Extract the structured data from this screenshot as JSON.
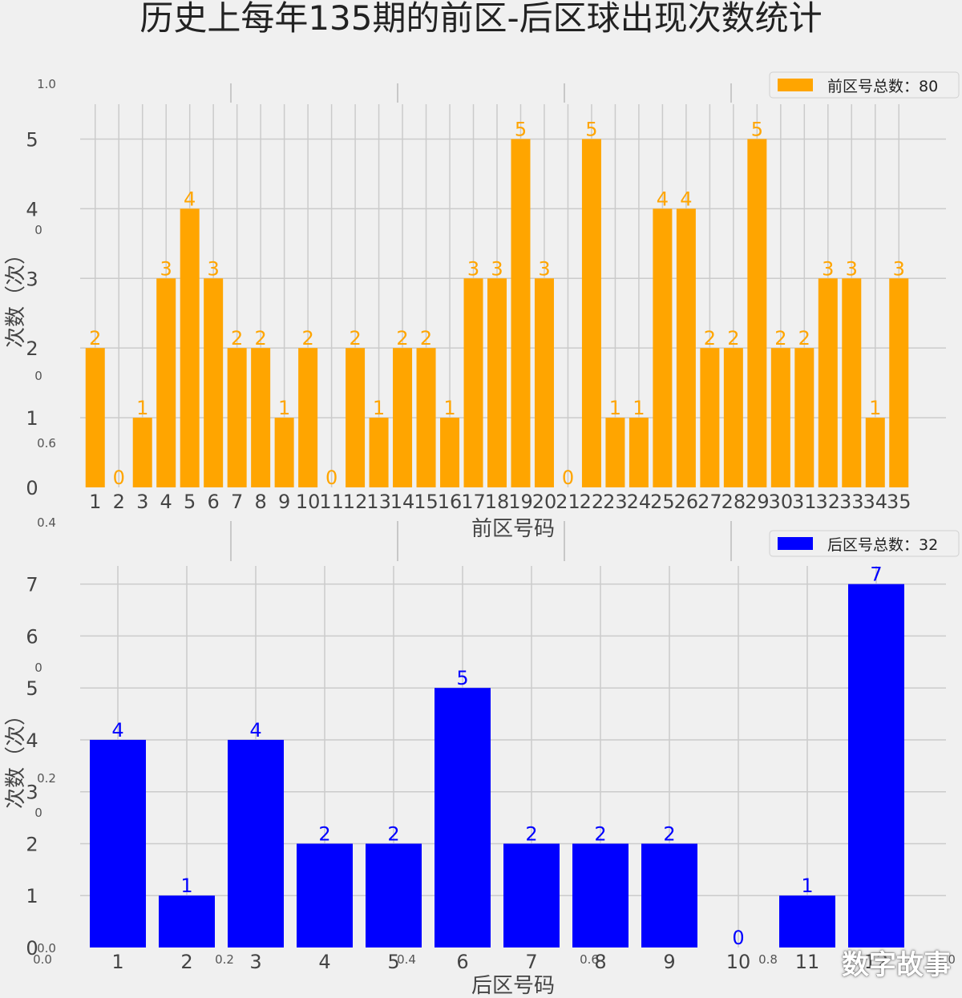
{
  "title": "历史上每年135期的前区-后区球出现次数统计",
  "watermark": "数字故事",
  "chart_data": [
    {
      "type": "bar",
      "color": "#ffa500",
      "categories": [
        "1",
        "2",
        "3",
        "4",
        "5",
        "6",
        "7",
        "8",
        "9",
        "10",
        "11",
        "12",
        "13",
        "14",
        "15",
        "16",
        "17",
        "18",
        "19",
        "20",
        "21",
        "22",
        "23",
        "24",
        "25",
        "26",
        "27",
        "28",
        "29",
        "30",
        "31",
        "32",
        "33",
        "34",
        "35"
      ],
      "series": [
        {
          "name": "前区号总数：80",
          "values": [
            2,
            0,
            1,
            3,
            4,
            3,
            2,
            2,
            1,
            2,
            0,
            2,
            1,
            2,
            2,
            1,
            3,
            3,
            5,
            3,
            0,
            5,
            1,
            1,
            4,
            4,
            2,
            2,
            5,
            2,
            2,
            3,
            3,
            1,
            3
          ]
        }
      ],
      "xlabel": "前区号码",
      "ylabel": "次数（次）",
      "yticks": [
        "0",
        "1",
        "2",
        "3",
        "4",
        "5"
      ],
      "ylim": [
        0,
        5.5
      ],
      "grid": true,
      "legend": "top-right"
    },
    {
      "type": "bar",
      "color": "#0000ff",
      "categories": [
        "1",
        "2",
        "3",
        "4",
        "5",
        "6",
        "7",
        "8",
        "9",
        "10",
        "11",
        "12"
      ],
      "series": [
        {
          "name": "后区号总数：32",
          "values": [
            4,
            1,
            4,
            2,
            2,
            5,
            2,
            2,
            2,
            0,
            1,
            7
          ]
        }
      ],
      "xlabel": "后区号码",
      "ylabel": "次数（次）",
      "yticks": [
        "0",
        "1",
        "2",
        "3",
        "4",
        "5",
        "6",
        "7"
      ],
      "ylim": [
        0,
        7.35
      ],
      "grid": true,
      "legend": "top-right"
    }
  ],
  "background_axis": {
    "left_ticks": [
      "1.0",
      "0.6",
      "0.4",
      "0.2",
      "0.0"
    ],
    "right_artifacts": [
      "0",
      "0",
      "0",
      "0",
      "0"
    ],
    "bottom_ticks": [
      "0.0",
      "0.2",
      "0.4",
      "0.6",
      "0.8",
      "1.0"
    ]
  }
}
